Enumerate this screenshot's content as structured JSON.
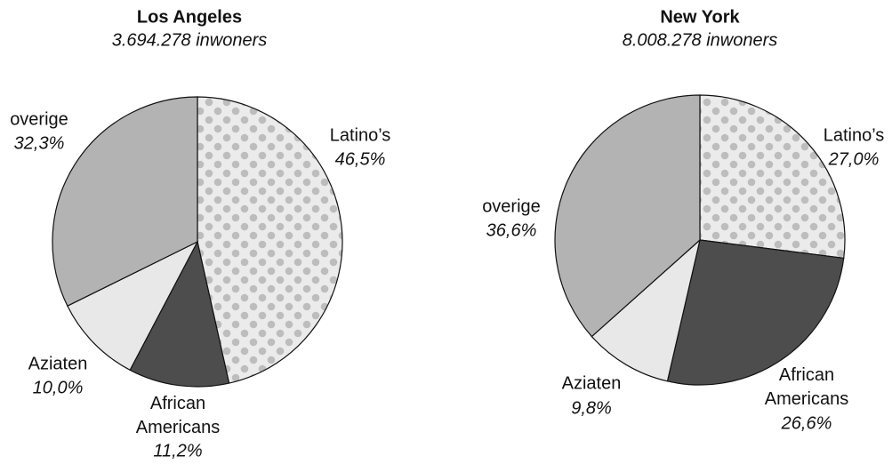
{
  "chart_data": [
    {
      "type": "pie",
      "title": "Los Angeles",
      "subtitle": "3.694.278 inwoners",
      "categories": [
        "Latino’s",
        "African Americans",
        "Aziaten",
        "overige"
      ],
      "values": [
        46.5,
        11.2,
        10.0,
        32.3
      ],
      "value_labels": [
        "46,5%",
        "11,2%",
        "10,0%",
        "32,3%"
      ],
      "colors": [
        "#ebebeb",
        "#4d4d4d",
        "#e8e8e8",
        "#b3b3b3"
      ],
      "dotted": [
        true,
        false,
        false,
        false
      ]
    },
    {
      "type": "pie",
      "title": "New York",
      "subtitle": "8.008.278 inwoners",
      "categories": [
        "Latino’s",
        "African Americans",
        "Aziaten",
        "overige"
      ],
      "values": [
        27.0,
        26.6,
        9.8,
        36.6
      ],
      "value_labels": [
        "27,0%",
        "26,6%",
        "9,8%",
        "36,6%"
      ],
      "colors": [
        "#ebebeb",
        "#4d4d4d",
        "#e8e8e8",
        "#b3b3b3"
      ],
      "dotted": [
        true,
        false,
        false,
        false
      ]
    }
  ]
}
